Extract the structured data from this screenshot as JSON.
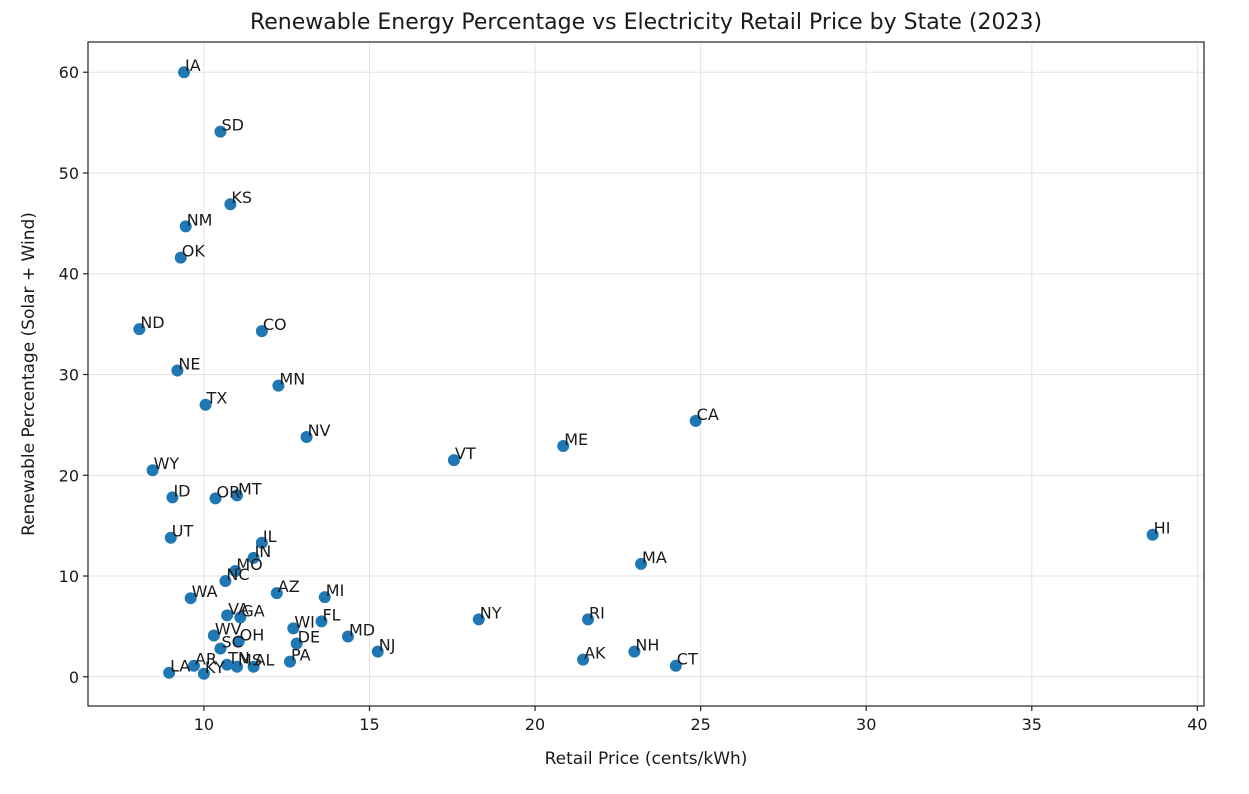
{
  "chart_data": {
    "type": "scatter",
    "title": "Renewable Energy Percentage vs Electricity Retail Price by State (2023)",
    "xlabel": "Retail Price (cents/kWh)",
    "ylabel": "Renewable Percentage (Solar + Wind)",
    "xlim": [
      6.5,
      40.2
    ],
    "ylim": [
      -2.9,
      63.0
    ],
    "xticks": [
      10,
      15,
      20,
      25,
      30,
      35,
      40
    ],
    "yticks": [
      0,
      10,
      20,
      30,
      40,
      50,
      60
    ],
    "grid": true,
    "marker_color": "#1f77b4",
    "points": [
      {
        "label": "IA",
        "x": 9.4,
        "y": 60.0
      },
      {
        "label": "SD",
        "x": 10.5,
        "y": 54.1
      },
      {
        "label": "KS",
        "x": 10.8,
        "y": 46.9
      },
      {
        "label": "NM",
        "x": 9.45,
        "y": 44.7
      },
      {
        "label": "OK",
        "x": 9.3,
        "y": 41.6
      },
      {
        "label": "ND",
        "x": 8.05,
        "y": 34.5
      },
      {
        "label": "CO",
        "x": 11.75,
        "y": 34.3
      },
      {
        "label": "NE",
        "x": 9.2,
        "y": 30.4
      },
      {
        "label": "MN",
        "x": 12.25,
        "y": 28.9
      },
      {
        "label": "TX",
        "x": 10.05,
        "y": 27.0
      },
      {
        "label": "CA",
        "x": 24.85,
        "y": 25.4
      },
      {
        "label": "NV",
        "x": 13.1,
        "y": 23.8
      },
      {
        "label": "ME",
        "x": 20.85,
        "y": 22.9
      },
      {
        "label": "VT",
        "x": 17.55,
        "y": 21.5
      },
      {
        "label": "WY",
        "x": 8.45,
        "y": 20.5
      },
      {
        "label": "ID",
        "x": 9.05,
        "y": 17.8
      },
      {
        "label": "OR",
        "x": 10.35,
        "y": 17.7
      },
      {
        "label": "MT",
        "x": 11.0,
        "y": 18.0
      },
      {
        "label": "HI",
        "x": 38.65,
        "y": 14.1
      },
      {
        "label": "UT",
        "x": 9.0,
        "y": 13.8
      },
      {
        "label": "IL",
        "x": 11.75,
        "y": 13.3
      },
      {
        "label": "IN",
        "x": 11.5,
        "y": 11.8
      },
      {
        "label": "MA",
        "x": 23.2,
        "y": 11.2
      },
      {
        "label": "MO",
        "x": 10.95,
        "y": 10.5
      },
      {
        "label": "NC",
        "x": 10.65,
        "y": 9.5
      },
      {
        "label": "AZ",
        "x": 12.2,
        "y": 8.3
      },
      {
        "label": "MI",
        "x": 13.65,
        "y": 7.9
      },
      {
        "label": "WA",
        "x": 9.6,
        "y": 7.8
      },
      {
        "label": "VA",
        "x": 10.7,
        "y": 6.1
      },
      {
        "label": "GA",
        "x": 11.1,
        "y": 5.9
      },
      {
        "label": "FL",
        "x": 13.55,
        "y": 5.5
      },
      {
        "label": "NY",
        "x": 18.3,
        "y": 5.7
      },
      {
        "label": "RI",
        "x": 21.6,
        "y": 5.7
      },
      {
        "label": "WI",
        "x": 12.7,
        "y": 4.8
      },
      {
        "label": "WV",
        "x": 10.3,
        "y": 4.1
      },
      {
        "label": "MD",
        "x": 14.35,
        "y": 4.0
      },
      {
        "label": "OH",
        "x": 11.05,
        "y": 3.5
      },
      {
        "label": "DE",
        "x": 12.8,
        "y": 3.3
      },
      {
        "label": "SC",
        "x": 10.5,
        "y": 2.8
      },
      {
        "label": "NJ",
        "x": 15.25,
        "y": 2.5
      },
      {
        "label": "NH",
        "x": 23.0,
        "y": 2.5
      },
      {
        "label": "AK",
        "x": 21.45,
        "y": 1.7
      },
      {
        "label": "PA",
        "x": 12.6,
        "y": 1.5
      },
      {
        "label": "AR",
        "x": 9.7,
        "y": 1.1
      },
      {
        "label": "TN",
        "x": 10.7,
        "y": 1.2
      },
      {
        "label": "MS",
        "x": 11.0,
        "y": 1.0
      },
      {
        "label": "AL",
        "x": 11.5,
        "y": 1.0
      },
      {
        "label": "CT",
        "x": 24.25,
        "y": 1.1
      },
      {
        "label": "LA",
        "x": 8.95,
        "y": 0.4
      },
      {
        "label": "KY",
        "x": 10.0,
        "y": 0.3
      }
    ]
  }
}
